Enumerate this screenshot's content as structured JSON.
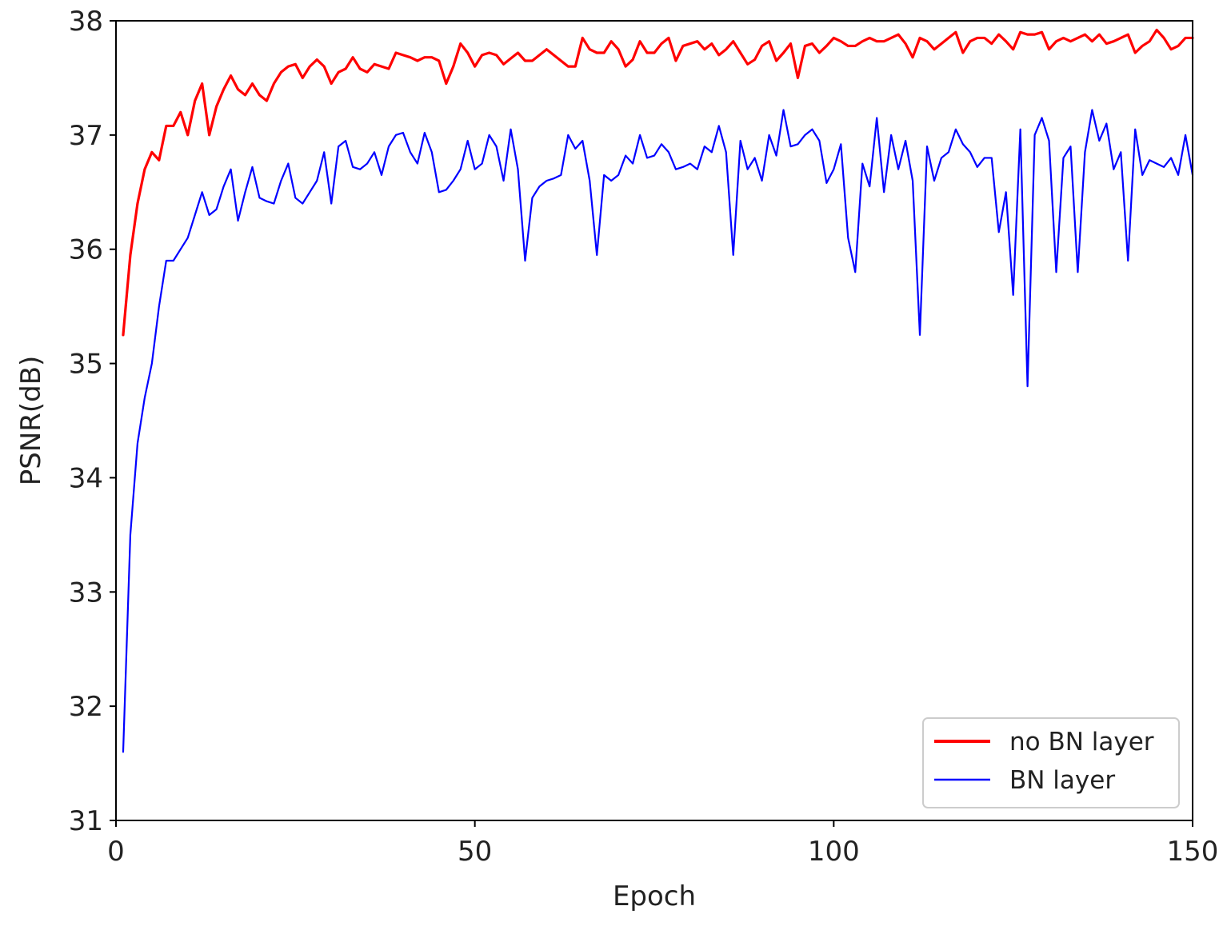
{
  "chart_data": {
    "type": "line",
    "title": "",
    "xlabel": "Epoch",
    "ylabel": "PSNR(dB)",
    "xlim": [
      0,
      150
    ],
    "ylim": [
      31,
      38
    ],
    "xticks": [
      0,
      50,
      100,
      150
    ],
    "yticks": [
      31,
      32,
      33,
      34,
      35,
      36,
      37,
      38
    ],
    "grid": false,
    "legend_position": "bottom-right",
    "series": [
      {
        "name": "no BN layer",
        "color": "#ff0000",
        "x": [
          1,
          2,
          3,
          4,
          5,
          6,
          7,
          8,
          9,
          10,
          11,
          12,
          13,
          14,
          15,
          16,
          17,
          18,
          19,
          20,
          21,
          22,
          23,
          24,
          25,
          26,
          27,
          28,
          29,
          30,
          31,
          32,
          33,
          34,
          35,
          36,
          37,
          38,
          39,
          40,
          41,
          42,
          43,
          44,
          45,
          46,
          47,
          48,
          49,
          50,
          51,
          52,
          53,
          54,
          55,
          56,
          57,
          58,
          59,
          60,
          61,
          62,
          63,
          64,
          65,
          66,
          67,
          68,
          69,
          70,
          71,
          72,
          73,
          74,
          75,
          76,
          77,
          78,
          79,
          80,
          81,
          82,
          83,
          84,
          85,
          86,
          87,
          88,
          89,
          90,
          91,
          92,
          93,
          94,
          95,
          96,
          97,
          98,
          99,
          100,
          101,
          102,
          103,
          104,
          105,
          106,
          107,
          108,
          109,
          110,
          111,
          112,
          113,
          114,
          115,
          116,
          117,
          118,
          119,
          120,
          121,
          122,
          123,
          124,
          125,
          126,
          127,
          128,
          129,
          130,
          131,
          132,
          133,
          134,
          135,
          136,
          137,
          138,
          139,
          140,
          141,
          142,
          143,
          144,
          145,
          146,
          147,
          148,
          149,
          150
        ],
        "y": [
          35.25,
          35.95,
          36.4,
          36.7,
          36.85,
          36.78,
          37.08,
          37.08,
          37.2,
          37.0,
          37.3,
          37.45,
          37.0,
          37.25,
          37.4,
          37.52,
          37.4,
          37.35,
          37.45,
          37.35,
          37.3,
          37.45,
          37.55,
          37.6,
          37.62,
          37.5,
          37.6,
          37.66,
          37.6,
          37.45,
          37.55,
          37.58,
          37.68,
          37.58,
          37.55,
          37.62,
          37.6,
          37.58,
          37.72,
          37.7,
          37.68,
          37.65,
          37.68,
          37.68,
          37.65,
          37.45,
          37.6,
          37.8,
          37.72,
          37.6,
          37.7,
          37.72,
          37.7,
          37.62,
          37.67,
          37.72,
          37.65,
          37.65,
          37.7,
          37.75,
          37.7,
          37.65,
          37.6,
          37.6,
          37.85,
          37.75,
          37.72,
          37.72,
          37.82,
          37.75,
          37.6,
          37.66,
          37.82,
          37.72,
          37.72,
          37.8,
          37.85,
          37.65,
          37.78,
          37.8,
          37.82,
          37.75,
          37.8,
          37.7,
          37.75,
          37.82,
          37.72,
          37.62,
          37.66,
          37.78,
          37.82,
          37.65,
          37.72,
          37.8,
          37.5,
          37.78,
          37.8,
          37.72,
          37.78,
          37.85,
          37.82,
          37.78,
          37.78,
          37.82,
          37.85,
          37.82,
          37.82,
          37.85,
          37.88,
          37.8,
          37.68,
          37.85,
          37.82,
          37.75,
          37.8,
          37.85,
          37.9,
          37.72,
          37.82,
          37.85,
          37.85,
          37.8,
          37.88,
          37.82,
          37.75,
          37.9,
          37.88,
          37.88,
          37.9,
          37.75,
          37.82,
          37.85,
          37.82,
          37.85,
          37.88,
          37.82,
          37.88,
          37.8,
          37.82,
          37.85,
          37.88,
          37.72,
          37.78,
          37.82,
          37.92,
          37.85,
          37.75,
          37.78,
          37.85,
          37.85
        ]
      },
      {
        "name": "BN layer",
        "color": "#0000ff",
        "x": [
          1,
          2,
          3,
          4,
          5,
          6,
          7,
          8,
          9,
          10,
          11,
          12,
          13,
          14,
          15,
          16,
          17,
          18,
          19,
          20,
          21,
          22,
          23,
          24,
          25,
          26,
          27,
          28,
          29,
          30,
          31,
          32,
          33,
          34,
          35,
          36,
          37,
          38,
          39,
          40,
          41,
          42,
          43,
          44,
          45,
          46,
          47,
          48,
          49,
          50,
          51,
          52,
          53,
          54,
          55,
          56,
          57,
          58,
          59,
          60,
          61,
          62,
          63,
          64,
          65,
          66,
          67,
          68,
          69,
          70,
          71,
          72,
          73,
          74,
          75,
          76,
          77,
          78,
          79,
          80,
          81,
          82,
          83,
          84,
          85,
          86,
          87,
          88,
          89,
          90,
          91,
          92,
          93,
          94,
          95,
          96,
          97,
          98,
          99,
          100,
          101,
          102,
          103,
          104,
          105,
          106,
          107,
          108,
          109,
          110,
          111,
          112,
          113,
          114,
          115,
          116,
          117,
          118,
          119,
          120,
          121,
          122,
          123,
          124,
          125,
          126,
          127,
          128,
          129,
          130,
          131,
          132,
          133,
          134,
          135,
          136,
          137,
          138,
          139,
          140,
          141,
          142,
          143,
          144,
          145,
          146,
          147,
          148,
          149,
          150
        ],
        "y": [
          31.6,
          33.5,
          34.3,
          34.7,
          35.0,
          35.5,
          35.9,
          35.9,
          36.0,
          36.1,
          36.3,
          36.5,
          36.3,
          36.35,
          36.55,
          36.7,
          36.25,
          36.5,
          36.72,
          36.45,
          36.42,
          36.4,
          36.6,
          36.75,
          36.45,
          36.4,
          36.5,
          36.6,
          36.85,
          36.4,
          36.9,
          36.95,
          36.72,
          36.7,
          36.75,
          36.85,
          36.65,
          36.9,
          37.0,
          37.02,
          36.85,
          36.75,
          37.02,
          36.85,
          36.5,
          36.52,
          36.6,
          36.7,
          36.95,
          36.7,
          36.75,
          37.0,
          36.9,
          36.6,
          37.05,
          36.7,
          35.9,
          36.45,
          36.55,
          36.6,
          36.62,
          36.65,
          37.0,
          36.88,
          36.95,
          36.6,
          35.95,
          36.65,
          36.6,
          36.65,
          36.82,
          36.75,
          37.0,
          36.8,
          36.82,
          36.92,
          36.85,
          36.7,
          36.72,
          36.75,
          36.7,
          36.9,
          36.85,
          37.08,
          36.85,
          35.95,
          36.95,
          36.7,
          36.8,
          36.6,
          37.0,
          36.82,
          37.22,
          36.9,
          36.92,
          37.0,
          37.05,
          36.95,
          36.58,
          36.7,
          36.92,
          36.1,
          35.8,
          36.75,
          36.55,
          37.15,
          36.5,
          37.0,
          36.7,
          36.95,
          36.6,
          35.25,
          36.9,
          36.6,
          36.8,
          36.85,
          37.05,
          36.92,
          36.85,
          36.72,
          36.8,
          36.8,
          36.15,
          36.5,
          35.6,
          37.05,
          34.8,
          37.0,
          37.15,
          36.95,
          35.8,
          36.8,
          36.9,
          35.8,
          36.85,
          37.22,
          36.95,
          37.1,
          36.7,
          36.85,
          35.9,
          37.05,
          36.65,
          36.78,
          36.75,
          36.72,
          36.8,
          36.65,
          37.0,
          36.65
        ]
      }
    ]
  }
}
